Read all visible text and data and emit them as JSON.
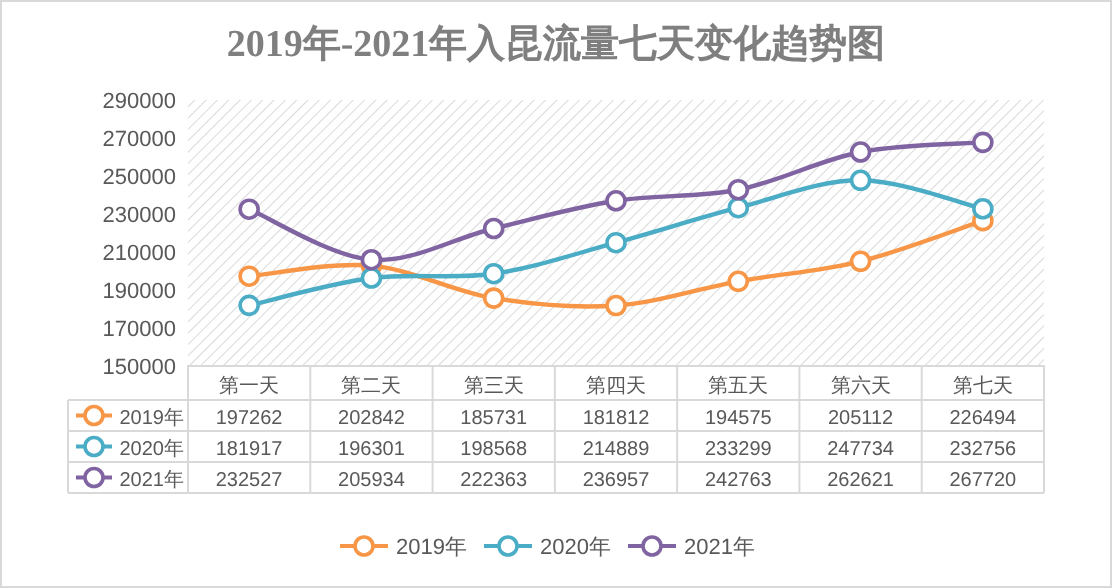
{
  "chart_data": {
    "type": "line",
    "title": "2019年-2021年入昆流量七天变化趋势图",
    "categories": [
      "第一天",
      "第二天",
      "第三天",
      "第四天",
      "第五天",
      "第六天",
      "第七天"
    ],
    "series": [
      {
        "name": "2019年",
        "color": "#f79646",
        "values": [
          197262,
          202842,
          185731,
          181812,
          194575,
          205112,
          226494
        ]
      },
      {
        "name": "2020年",
        "color": "#4bacc6",
        "values": [
          181917,
          196301,
          198568,
          214889,
          233299,
          247734,
          232756
        ]
      },
      {
        "name": "2021年",
        "color": "#8064a2",
        "values": [
          232527,
          205934,
          222363,
          236957,
          242763,
          262621,
          267720
        ]
      }
    ],
    "ylim": [
      150000,
      290000
    ],
    "yticks": [
      150000,
      170000,
      190000,
      210000,
      230000,
      250000,
      270000,
      290000
    ],
    "data_labels": true,
    "legend": "bottom",
    "marker": "circle",
    "grid": false
  }
}
